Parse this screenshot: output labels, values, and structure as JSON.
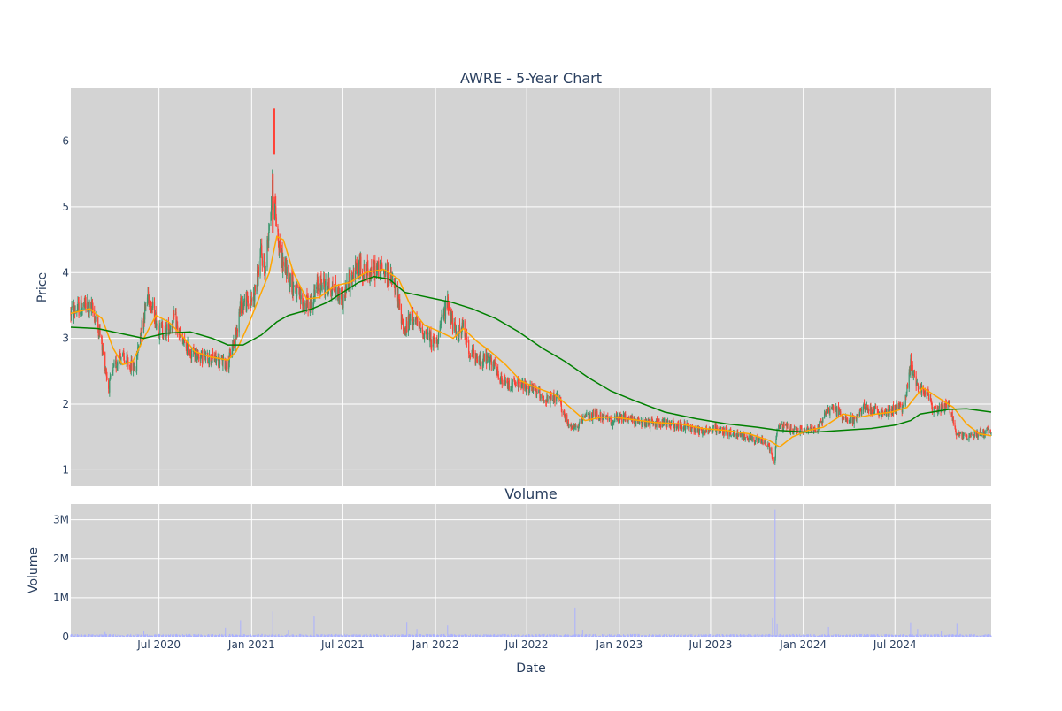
{
  "chart_data": [
    {
      "type": "candlestick",
      "title": "AWRE - 5-Year Chart",
      "ylabel": "Price",
      "ylim": [
        0.75,
        6.8
      ],
      "yticks": [
        1,
        2,
        3,
        4,
        5,
        6
      ],
      "xrange": [
        "2020-01-08",
        "2025-01-08"
      ],
      "grid": true,
      "up_color": "#3d9970",
      "down_color": "#ff4136",
      "background_color": "#d3d3d3",
      "price_path": [
        [
          "2020-01-08",
          3.4
        ],
        [
          "2020-01-22",
          3.45
        ],
        [
          "2020-02-05",
          3.5
        ],
        [
          "2020-02-20",
          3.45
        ],
        [
          "2020-03-05",
          3.1
        ],
        [
          "2020-03-16",
          2.6
        ],
        [
          "2020-03-23",
          2.25
        ],
        [
          "2020-04-01",
          2.5
        ],
        [
          "2020-04-15",
          2.75
        ],
        [
          "2020-05-01",
          2.6
        ],
        [
          "2020-05-15",
          2.55
        ],
        [
          "2020-05-25",
          3.1
        ],
        [
          "2020-06-01",
          3.35
        ],
        [
          "2020-06-10",
          3.7
        ],
        [
          "2020-06-20",
          3.4
        ],
        [
          "2020-07-01",
          3.15
        ],
        [
          "2020-07-15",
          3.1
        ],
        [
          "2020-08-01",
          3.3
        ],
        [
          "2020-08-15",
          2.95
        ],
        [
          "2020-09-01",
          2.8
        ],
        [
          "2020-09-15",
          2.75
        ],
        [
          "2020-10-01",
          2.7
        ],
        [
          "2020-10-15",
          2.7
        ],
        [
          "2020-11-01",
          2.65
        ],
        [
          "2020-11-15",
          2.6
        ],
        [
          "2020-12-01",
          3.1
        ],
        [
          "2020-12-10",
          3.5
        ],
        [
          "2020-12-20",
          3.55
        ],
        [
          "2021-01-01",
          3.55
        ],
        [
          "2021-01-10",
          3.8
        ],
        [
          "2021-01-20",
          4.3
        ],
        [
          "2021-01-28",
          4.0
        ],
        [
          "2021-02-05",
          4.8
        ],
        [
          "2021-02-12",
          5.3
        ],
        [
          "2021-02-20",
          4.7
        ],
        [
          "2021-03-01",
          4.2
        ],
        [
          "2021-03-15",
          3.95
        ],
        [
          "2021-04-01",
          3.7
        ],
        [
          "2021-04-15",
          3.5
        ],
        [
          "2021-05-01",
          3.55
        ],
        [
          "2021-05-15",
          3.85
        ],
        [
          "2021-06-01",
          3.8
        ],
        [
          "2021-06-15",
          3.75
        ],
        [
          "2021-07-01",
          3.6
        ],
        [
          "2021-07-15",
          3.9
        ],
        [
          "2021-08-01",
          4.1
        ],
        [
          "2021-08-15",
          4.0
        ],
        [
          "2021-09-01",
          4.05
        ],
        [
          "2021-09-15",
          4.05
        ],
        [
          "2021-10-01",
          3.95
        ],
        [
          "2021-10-15",
          3.7
        ],
        [
          "2021-11-01",
          3.1
        ],
        [
          "2021-11-15",
          3.35
        ],
        [
          "2021-12-01",
          3.15
        ],
        [
          "2021-12-15",
          3.05
        ],
        [
          "2022-01-01",
          2.9
        ],
        [
          "2022-01-15",
          3.3
        ],
        [
          "2022-01-25",
          3.55
        ],
        [
          "2022-02-10",
          3.05
        ],
        [
          "2022-02-25",
          3.15
        ],
        [
          "2022-03-10",
          2.8
        ],
        [
          "2022-03-25",
          2.65
        ],
        [
          "2022-04-10",
          2.7
        ],
        [
          "2022-04-25",
          2.6
        ],
        [
          "2022-05-10",
          2.35
        ],
        [
          "2022-05-25",
          2.3
        ],
        [
          "2022-06-15",
          2.3
        ],
        [
          "2022-07-01",
          2.25
        ],
        [
          "2022-07-20",
          2.2
        ],
        [
          "2022-08-10",
          2.05
        ],
        [
          "2022-09-01",
          2.1
        ],
        [
          "2022-09-20",
          1.7
        ],
        [
          "2022-10-10",
          1.65
        ],
        [
          "2022-10-25",
          1.8
        ],
        [
          "2022-11-15",
          1.85
        ],
        [
          "2022-12-15",
          1.75
        ],
        [
          "2023-01-15",
          1.8
        ],
        [
          "2023-02-15",
          1.7
        ],
        [
          "2023-03-15",
          1.72
        ],
        [
          "2023-04-15",
          1.7
        ],
        [
          "2023-05-15",
          1.65
        ],
        [
          "2023-06-15",
          1.6
        ],
        [
          "2023-07-15",
          1.62
        ],
        [
          "2023-08-15",
          1.55
        ],
        [
          "2023-09-15",
          1.5
        ],
        [
          "2023-10-10",
          1.45
        ],
        [
          "2023-10-25",
          1.35
        ],
        [
          "2023-11-05",
          1.1
        ],
        [
          "2023-11-10",
          1.65
        ],
        [
          "2023-11-25",
          1.65
        ],
        [
          "2023-12-15",
          1.6
        ],
        [
          "2024-01-10",
          1.6
        ],
        [
          "2024-02-01",
          1.65
        ],
        [
          "2024-02-15",
          1.9
        ],
        [
          "2024-03-01",
          1.95
        ],
        [
          "2024-03-20",
          1.8
        ],
        [
          "2024-04-10",
          1.75
        ],
        [
          "2024-05-01",
          1.95
        ],
        [
          "2024-05-20",
          1.9
        ],
        [
          "2024-06-10",
          1.85
        ],
        [
          "2024-07-01",
          1.95
        ],
        [
          "2024-07-20",
          1.95
        ],
        [
          "2024-08-01",
          2.6
        ],
        [
          "2024-08-15",
          2.3
        ],
        [
          "2024-09-01",
          2.2
        ],
        [
          "2024-09-15",
          1.9
        ],
        [
          "2024-10-01",
          1.95
        ],
        [
          "2024-10-15",
          2.0
        ],
        [
          "2024-11-01",
          1.55
        ],
        [
          "2024-11-20",
          1.5
        ],
        [
          "2024-12-10",
          1.55
        ],
        [
          "2025-01-08",
          1.6
        ]
      ],
      "series": [
        {
          "color": "#ffa500",
          "values": [
            [
              "2020-01-08",
              3.38
            ],
            [
              "2020-02-15",
              3.45
            ],
            [
              "2020-03-10",
              3.3
            ],
            [
              "2020-04-01",
              2.85
            ],
            [
              "2020-04-20",
              2.6
            ],
            [
              "2020-05-10",
              2.65
            ],
            [
              "2020-06-01",
              3.0
            ],
            [
              "2020-06-25",
              3.35
            ],
            [
              "2020-07-20",
              3.25
            ],
            [
              "2020-08-15",
              3.05
            ],
            [
              "2020-09-10",
              2.8
            ],
            [
              "2020-10-10",
              2.72
            ],
            [
              "2020-11-15",
              2.67
            ],
            [
              "2020-12-01",
              2.8
            ],
            [
              "2020-12-25",
              3.2
            ],
            [
              "2021-01-15",
              3.6
            ],
            [
              "2021-02-05",
              4.0
            ],
            [
              "2021-02-20",
              4.55
            ],
            [
              "2021-03-05",
              4.5
            ],
            [
              "2021-03-25",
              4.0
            ],
            [
              "2021-04-20",
              3.6
            ],
            [
              "2021-05-15",
              3.62
            ],
            [
              "2021-06-15",
              3.8
            ],
            [
              "2021-07-15",
              3.85
            ],
            [
              "2021-08-15",
              4.0
            ],
            [
              "2021-09-20",
              4.05
            ],
            [
              "2021-10-20",
              3.9
            ],
            [
              "2021-11-15",
              3.45
            ],
            [
              "2021-12-10",
              3.2
            ],
            [
              "2022-01-10",
              3.1
            ],
            [
              "2022-02-05",
              3.0
            ],
            [
              "2022-02-25",
              3.15
            ],
            [
              "2022-03-25",
              2.95
            ],
            [
              "2022-04-20",
              2.8
            ],
            [
              "2022-05-20",
              2.6
            ],
            [
              "2022-06-20",
              2.35
            ],
            [
              "2022-07-20",
              2.25
            ],
            [
              "2022-08-25",
              2.15
            ],
            [
              "2022-09-25",
              1.95
            ],
            [
              "2022-10-25",
              1.75
            ],
            [
              "2022-11-25",
              1.8
            ],
            [
              "2022-12-25",
              1.8
            ],
            [
              "2023-02-01",
              1.76
            ],
            [
              "2023-03-15",
              1.72
            ],
            [
              "2023-05-01",
              1.7
            ],
            [
              "2023-06-15",
              1.63
            ],
            [
              "2023-08-01",
              1.6
            ],
            [
              "2023-09-15",
              1.55
            ],
            [
              "2023-10-25",
              1.45
            ],
            [
              "2023-11-15",
              1.35
            ],
            [
              "2023-12-10",
              1.5
            ],
            [
              "2024-01-10",
              1.6
            ],
            [
              "2024-02-10",
              1.65
            ],
            [
              "2024-03-20",
              1.85
            ],
            [
              "2024-04-20",
              1.8
            ],
            [
              "2024-05-25",
              1.85
            ],
            [
              "2024-06-25",
              1.88
            ],
            [
              "2024-07-25",
              1.95
            ],
            [
              "2024-08-25",
              2.25
            ],
            [
              "2024-09-25",
              2.1
            ],
            [
              "2024-10-25",
              1.95
            ],
            [
              "2024-11-20",
              1.7
            ],
            [
              "2024-12-15",
              1.55
            ],
            [
              "2025-01-08",
              1.52
            ]
          ]
        },
        {
          "color": "#008000",
          "values": [
            [
              "2020-01-08",
              3.17
            ],
            [
              "2020-03-01",
              3.15
            ],
            [
              "2020-05-01",
              3.05
            ],
            [
              "2020-06-01",
              3.0
            ],
            [
              "2020-07-15",
              3.08
            ],
            [
              "2020-09-01",
              3.1
            ],
            [
              "2020-10-15",
              3.0
            ],
            [
              "2020-11-15",
              2.9
            ],
            [
              "2020-12-15",
              2.9
            ],
            [
              "2021-01-20",
              3.05
            ],
            [
              "2021-02-20",
              3.25
            ],
            [
              "2021-03-15",
              3.35
            ],
            [
              "2021-05-01",
              3.45
            ],
            [
              "2021-06-01",
              3.55
            ],
            [
              "2021-07-01",
              3.7
            ],
            [
              "2021-08-01",
              3.85
            ],
            [
              "2021-09-01",
              3.94
            ],
            [
              "2021-10-01",
              3.9
            ],
            [
              "2021-11-01",
              3.7
            ],
            [
              "2021-12-01",
              3.65
            ],
            [
              "2022-01-01",
              3.6
            ],
            [
              "2022-02-01",
              3.55
            ],
            [
              "2022-03-15",
              3.45
            ],
            [
              "2022-05-01",
              3.3
            ],
            [
              "2022-06-15",
              3.1
            ],
            [
              "2022-08-01",
              2.85
            ],
            [
              "2022-09-15",
              2.65
            ],
            [
              "2022-11-01",
              2.4
            ],
            [
              "2022-12-15",
              2.2
            ],
            [
              "2023-02-01",
              2.05
            ],
            [
              "2023-04-01",
              1.88
            ],
            [
              "2023-06-01",
              1.78
            ],
            [
              "2023-08-01",
              1.7
            ],
            [
              "2023-10-01",
              1.65
            ],
            [
              "2023-11-15",
              1.6
            ],
            [
              "2024-01-15",
              1.57
            ],
            [
              "2024-03-15",
              1.6
            ],
            [
              "2024-05-15",
              1.63
            ],
            [
              "2024-07-01",
              1.68
            ],
            [
              "2024-08-01",
              1.75
            ],
            [
              "2024-08-20",
              1.85
            ],
            [
              "2024-10-15",
              1.92
            ],
            [
              "2024-11-20",
              1.93
            ],
            [
              "2025-01-08",
              1.88
            ]
          ]
        }
      ],
      "highlights": [
        {
          "date": "2021-02-12",
          "low": 4.6,
          "high": 5.5
        },
        {
          "date": "2021-02-15",
          "low": 5.8,
          "high": 6.5
        }
      ]
    },
    {
      "type": "bar",
      "title": "Volume",
      "xlabel": "Date",
      "ylabel": "Volume",
      "ylim": [
        0,
        3400000
      ],
      "yticks": [
        0,
        1000000,
        2000000,
        3000000
      ],
      "ytick_labels": [
        "0",
        "1M",
        "2M",
        "3M"
      ],
      "x_ticks": [
        {
          "date": "2020-07-01",
          "label": "Jul 2020"
        },
        {
          "date": "2021-01-01",
          "label": "Jan 2021"
        },
        {
          "date": "2021-07-01",
          "label": "Jul 2021"
        },
        {
          "date": "2022-01-01",
          "label": "Jan 2022"
        },
        {
          "date": "2022-07-01",
          "label": "Jul 2022"
        },
        {
          "date": "2023-01-01",
          "label": "Jan 2023"
        },
        {
          "date": "2023-07-01",
          "label": "Jul 2023"
        },
        {
          "date": "2024-01-01",
          "label": "Jan 2024"
        },
        {
          "date": "2024-07-01",
          "label": "Jul 2024"
        }
      ],
      "color": "#aab0ff",
      "baseline_volume": 45000,
      "spikes": [
        [
          "2020-03-16",
          120000
        ],
        [
          "2020-06-01",
          150000
        ],
        [
          "2020-11-10",
          230000
        ],
        [
          "2020-12-10",
          420000
        ],
        [
          "2021-02-12",
          650000
        ],
        [
          "2021-03-15",
          180000
        ],
        [
          "2021-05-05",
          520000
        ],
        [
          "2021-11-05",
          380000
        ],
        [
          "2021-11-25",
          200000
        ],
        [
          "2022-01-25",
          290000
        ],
        [
          "2022-10-01",
          460000
        ],
        [
          "2022-10-05",
          750000
        ],
        [
          "2022-10-20",
          180000
        ],
        [
          "2023-11-01",
          480000
        ],
        [
          "2023-11-06",
          3250000
        ],
        [
          "2023-11-10",
          320000
        ],
        [
          "2024-02-20",
          250000
        ],
        [
          "2024-08-01",
          370000
        ],
        [
          "2024-08-15",
          200000
        ],
        [
          "2024-10-01",
          150000
        ],
        [
          "2024-11-01",
          330000
        ],
        [
          "2024-12-15",
          120000
        ]
      ]
    }
  ]
}
